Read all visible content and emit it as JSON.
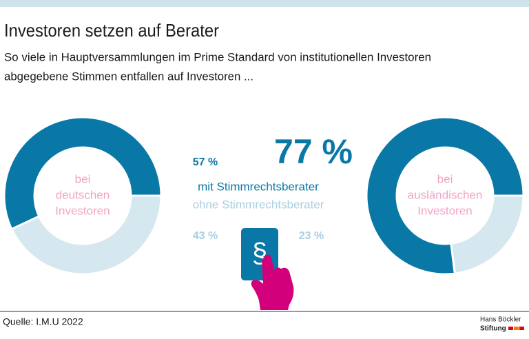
{
  "header": {
    "title": "Investoren setzen auf Berater",
    "subtitle": [
      "So viele in Hauptversammlungen im Prime Standard von institutionellen Investoren",
      "abgegebene Stimmen entfallen auf Investoren ..."
    ]
  },
  "chart_data": [
    {
      "type": "donut",
      "center_label": [
        "bei",
        "deutschen",
        "Investoren"
      ],
      "categories": [
        "mit Stimmrechtsberater",
        "ohne Stimmrechtsberater"
      ],
      "values": [
        57,
        43
      ],
      "value_labels": [
        "57 %",
        "43 %"
      ],
      "colors": [
        "#0a78a6",
        "#d5e8ef"
      ]
    },
    {
      "type": "donut",
      "center_label": [
        "bei",
        "ausländischen",
        "Investoren"
      ],
      "values": [
        77,
        23
      ],
      "value_labels": [
        "77 %",
        "23 %"
      ],
      "colors": [
        "#0a78a6",
        "#d5e8ef"
      ]
    }
  ],
  "footer": {
    "source": "Quelle: I.M.U 2022",
    "logo": [
      "Hans Böckler",
      "Stiftung"
    ]
  }
}
